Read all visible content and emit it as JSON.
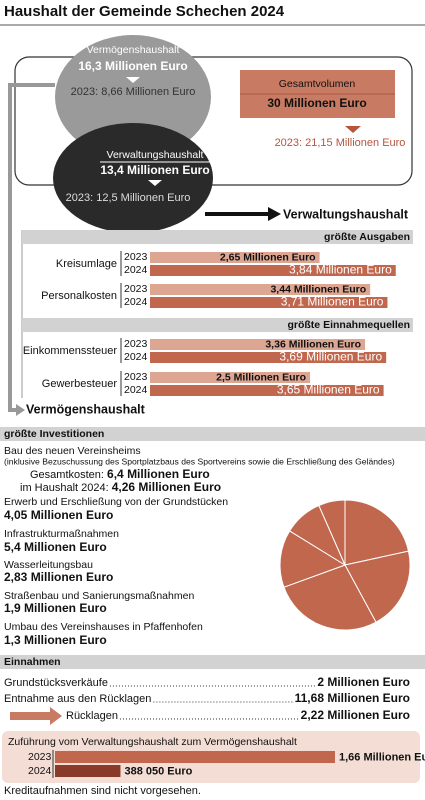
{
  "title": "Haushalt der Gemeinde Schechen 2024",
  "overview": {
    "vermoegen": {
      "label": "Vermögenshaushalt",
      "value": "16,3 Millionen Euro",
      "prev": "2023: 8,66 Millionen Euro"
    },
    "verwaltung": {
      "label": "Verwaltungshaushalt",
      "value": "13,4 Millionen Euro",
      "prev": "2023: 12,5 Millionen Euro"
    },
    "gesamt": {
      "label": "Gesamtvolumen",
      "value": "30 Millionen Euro",
      "prev": "2023: 21,15 Millionen Euro"
    }
  },
  "verwaltungshaushalt": {
    "title": "Verwaltungshaushalt",
    "ausgaben": {
      "heading": "größte Ausgaben",
      "items": [
        {
          "label": "Kreisumlage",
          "years": [
            "2023",
            "2024"
          ],
          "values": [
            2.65,
            3.84
          ],
          "value_labels": [
            "2,65 Millionen Euro",
            "3,84 Millionen Euro"
          ]
        },
        {
          "label": "Personalkosten",
          "years": [
            "2023",
            "2024"
          ],
          "values": [
            3.44,
            3.71
          ],
          "value_labels": [
            "3,44 Millionen Euro",
            "3,71 Millionen Euro"
          ]
        }
      ]
    },
    "einnahmen": {
      "heading": "größte Einnahmequellen",
      "items": [
        {
          "label": "Einkommenssteuer",
          "years": [
            "2023",
            "2024"
          ],
          "values": [
            3.36,
            3.69
          ],
          "value_labels": [
            "3,36 Millionen Euro",
            "3,69 Millionen Euro"
          ]
        },
        {
          "label": "Gewerbesteuer",
          "years": [
            "2023",
            "2024"
          ],
          "values": [
            2.5,
            3.65
          ],
          "value_labels": [
            "2,5 Millionen Euro",
            "3,65 Millionen Euro"
          ]
        }
      ]
    }
  },
  "vermoegenshaushalt": {
    "title": "Vermögenshaushalt"
  },
  "investitionen": {
    "heading": "größte Investitionen",
    "items": [
      {
        "title": "Bau des neuen Vereinsheims",
        "note": "(inklusive Bezuschussung des Sportplatzbaus des Sportvereins sowie die Erschließung des Geländes)",
        "total_label": "Gesamtkosten:",
        "total": "6,4 Millionen Euro",
        "budget_label": "im Haushalt 2024:",
        "value": 4.26,
        "value_label": "4,26 Millionen Euro"
      },
      {
        "title": "Erwerb und Erschließung von der Grundstücken",
        "value": 4.05,
        "value_label": "4,05 Millionen Euro"
      },
      {
        "title": "Infrastrukturmaßnahmen",
        "value": 5.4,
        "value_label": "5,4 Millionen Euro"
      },
      {
        "title": "Wasserleitungsbau",
        "value": 2.83,
        "value_label": "2,83 Millionen Euro"
      },
      {
        "title": "Straßenbau und Sanierungsmaßnahmen",
        "value": 1.9,
        "value_label": "1,9 Millionen Euro"
      },
      {
        "title": "Umbau des Vereinshauses in Pfaffenhofen",
        "value": 1.3,
        "value_label": "1,3 Millionen Euro"
      }
    ]
  },
  "einnahmen": {
    "heading": "Einnahmen",
    "rows": [
      {
        "label": "Grundstücksverkäufe",
        "value": "2 Millionen Euro"
      },
      {
        "label": "Entnahme aus den Rücklagen",
        "value": "11,68 Millionen Euro"
      },
      {
        "label": "Rücklagen",
        "value": "2,22 Millionen Euro"
      }
    ]
  },
  "zufuehrung": {
    "title": "Zuführung vom Verwaltungshaushalt zum Vermögenshaushalt",
    "years": [
      "2023",
      "2024"
    ],
    "values": [
      1660000,
      388050
    ],
    "value_labels": [
      "1,66 Millionen Euro",
      "388 050 Euro"
    ],
    "note": "Kreditaufnahmen sind nicht vorgesehen."
  }
}
